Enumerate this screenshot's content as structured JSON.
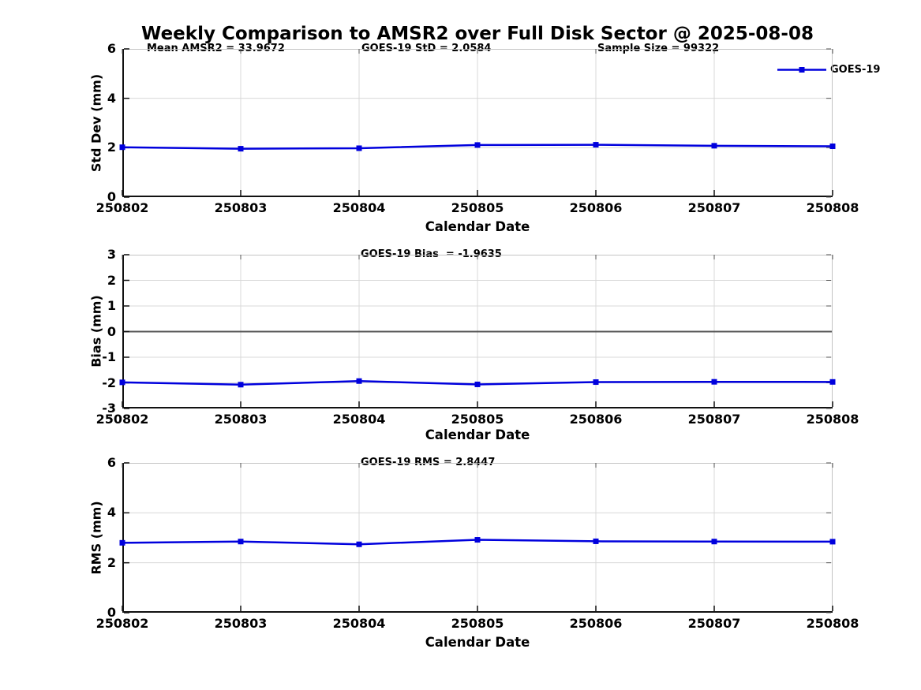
{
  "title": "Weekly Comparison to AMSR2 over Full Disk Sector @ 2025-08-08",
  "colors": {
    "line": "#0000dd",
    "grid": "#d8d8d8",
    "axis": "#111111",
    "spine_light": "#c4c4c4",
    "tick_minor": "#555555",
    "zero_line": "#555555",
    "text": "#000000",
    "background": "#ffffff"
  },
  "legend": {
    "label": "GOES-19",
    "position": "top-right-outside"
  },
  "chart_data": [
    {
      "id": "stddev",
      "type": "line",
      "annotations": [
        "Mean AMSR2 = 33.9672",
        "GOES-19 StD = 2.0584",
        "Sample Size = 99322"
      ],
      "ylabel": "Std Dev (mm)",
      "xlabel": "Calendar Date",
      "categories": [
        "250802",
        "250803",
        "250804",
        "250805",
        "250806",
        "250807",
        "250808"
      ],
      "series": [
        {
          "name": "GOES-19",
          "values": [
            2.02,
            1.96,
            1.98,
            2.11,
            2.12,
            2.08,
            2.0584
          ]
        }
      ],
      "ylim": [
        0,
        6
      ],
      "yticks": [
        0,
        2,
        4,
        6
      ],
      "grid": true,
      "marker": "square",
      "zero_line": false
    },
    {
      "id": "bias",
      "type": "line",
      "annotations": [
        "GOES-19 Bias  = -1.9635"
      ],
      "ylabel": "Bias (mm)",
      "xlabel": "Calendar Date",
      "categories": [
        "250802",
        "250803",
        "250804",
        "250805",
        "250806",
        "250807",
        "250808"
      ],
      "series": [
        {
          "name": "GOES-19",
          "values": [
            -1.98,
            -2.07,
            -1.93,
            -2.06,
            -1.97,
            -1.96,
            -1.9635
          ]
        }
      ],
      "ylim": [
        -3,
        3
      ],
      "yticks": [
        -3,
        -2,
        -1,
        0,
        1,
        2,
        3
      ],
      "grid": true,
      "marker": "square",
      "zero_line": true
    },
    {
      "id": "rms",
      "type": "line",
      "annotations": [
        "GOES-19 RMS = 2.8447"
      ],
      "ylabel": "RMS (mm)",
      "xlabel": "Calendar Date",
      "categories": [
        "250802",
        "250803",
        "250804",
        "250805",
        "250806",
        "250807",
        "250808"
      ],
      "series": [
        {
          "name": "GOES-19",
          "values": [
            2.8,
            2.85,
            2.74,
            2.92,
            2.86,
            2.85,
            2.8447
          ]
        }
      ],
      "ylim": [
        0,
        6
      ],
      "yticks": [
        0,
        2,
        4,
        6
      ],
      "grid": true,
      "marker": "square",
      "zero_line": false
    }
  ]
}
